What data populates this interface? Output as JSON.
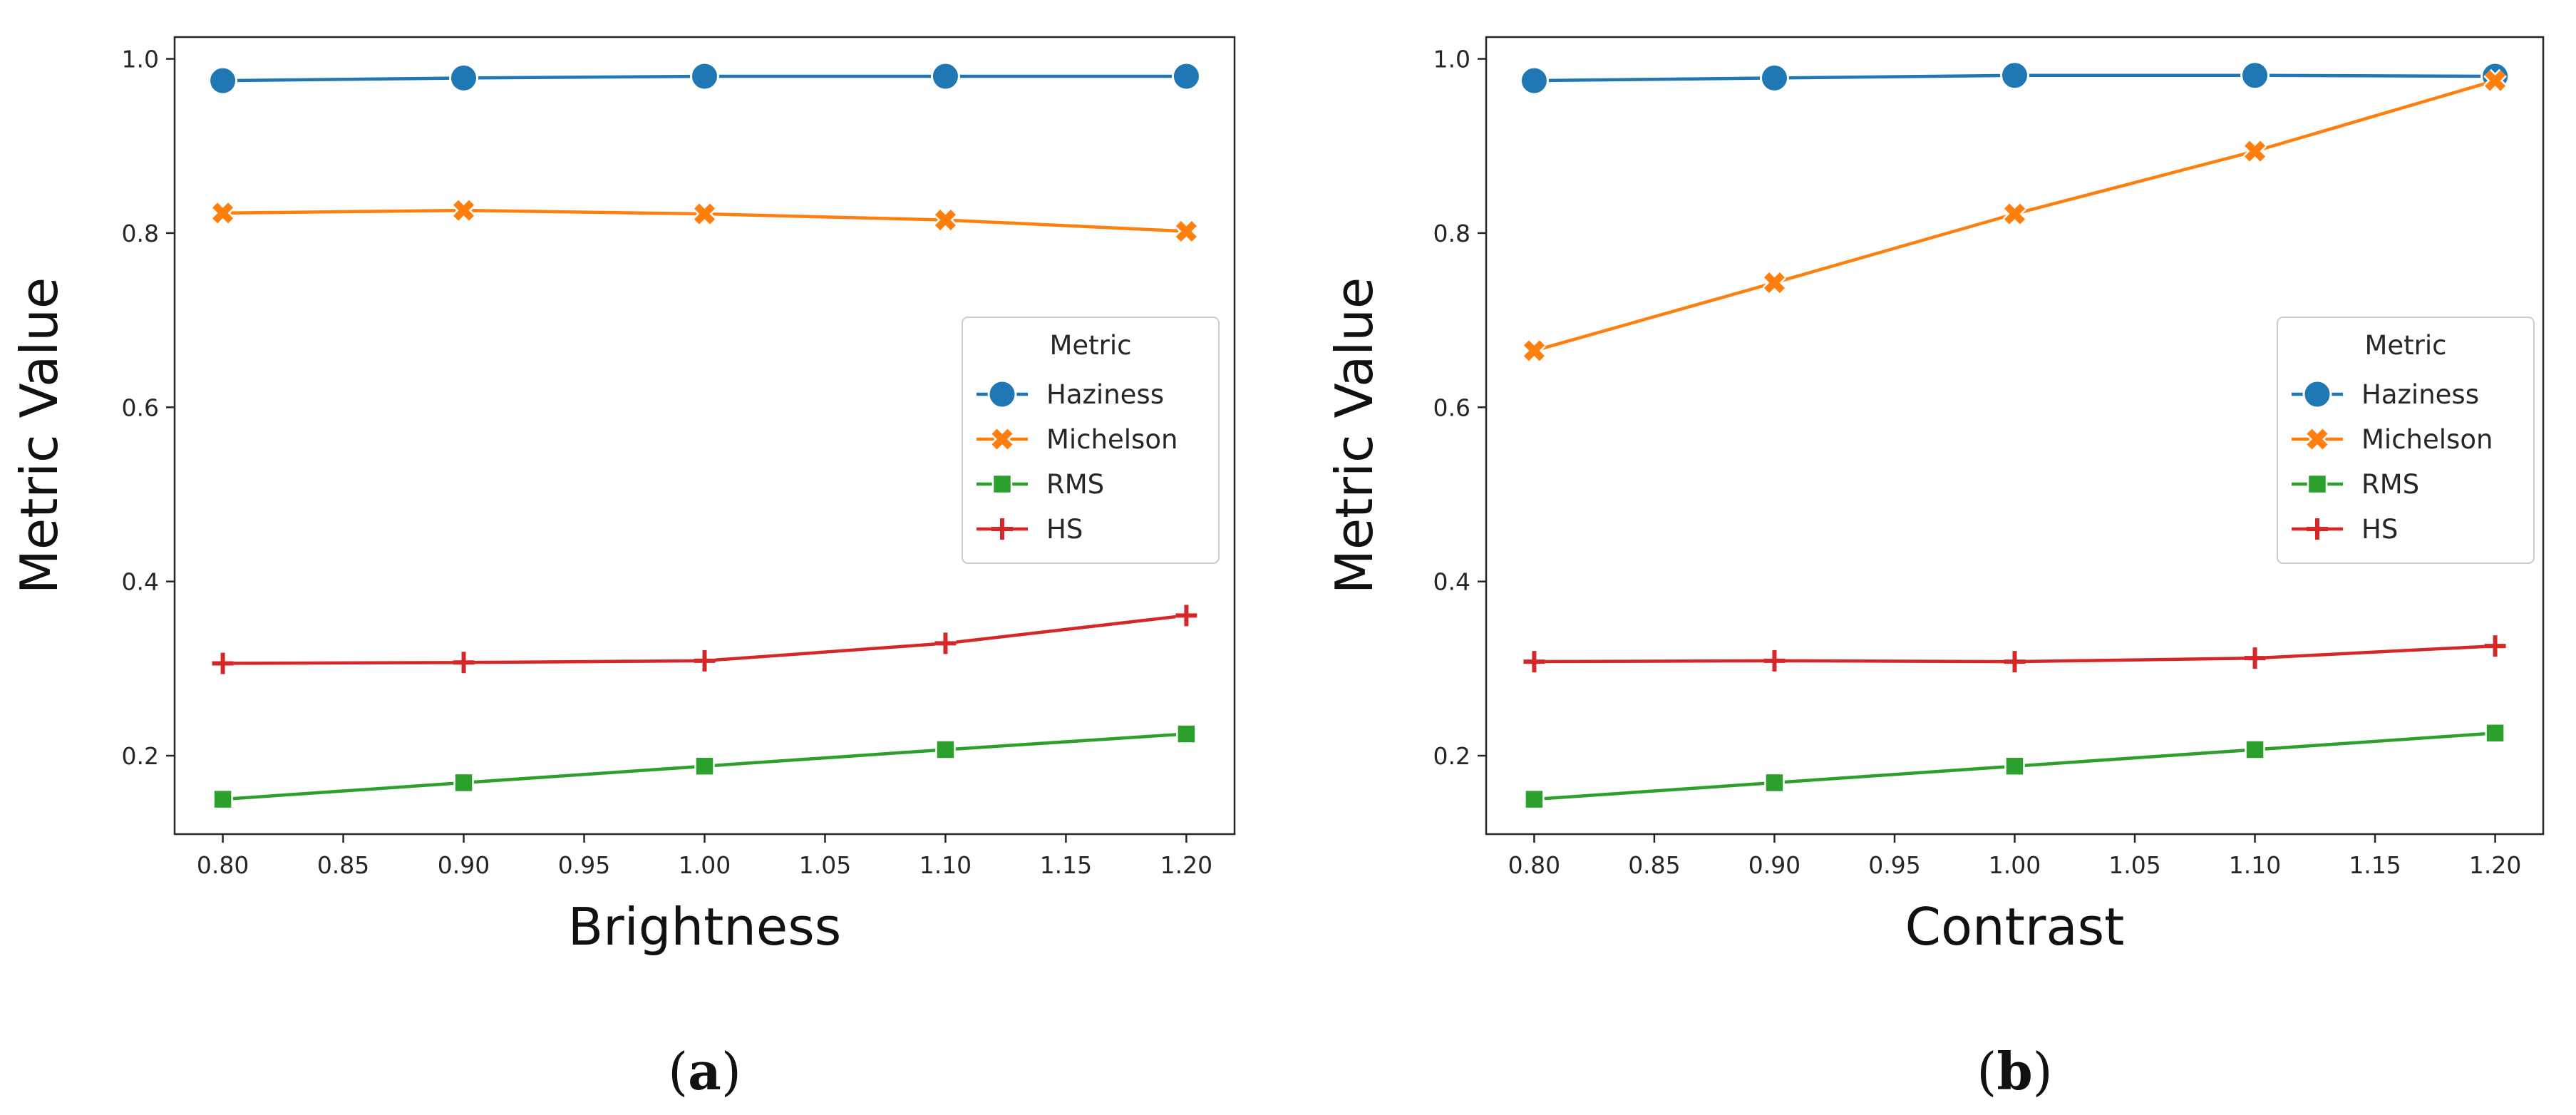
{
  "chart_data": [
    {
      "type": "line",
      "panel_label": "a",
      "xlabel": "Brightness",
      "ylabel": "Metric Value",
      "x": [
        0.8,
        0.9,
        1.0,
        1.1,
        1.2
      ],
      "xlim": [
        0.78,
        1.22
      ],
      "ylim": [
        0.11,
        1.025
      ],
      "xticks": [
        "0.80",
        "0.85",
        "0.90",
        "0.95",
        "1.00",
        "1.05",
        "1.10",
        "1.15",
        "1.20"
      ],
      "xtick_values": [
        0.8,
        0.85,
        0.9,
        0.95,
        1.0,
        1.05,
        1.1,
        1.15,
        1.2
      ],
      "yticks": [
        "0.2",
        "0.4",
        "0.6",
        "0.8",
        "1.0"
      ],
      "ytick_values": [
        0.2,
        0.4,
        0.6,
        0.8,
        1.0
      ],
      "grid": false,
      "legend": {
        "title": "Metric",
        "placement": "center-right"
      },
      "series": [
        {
          "name": "Haziness",
          "marker": "circle",
          "color": "#1f77b4",
          "values": [
            0.975,
            0.978,
            0.98,
            0.98,
            0.98
          ]
        },
        {
          "name": "Michelson",
          "marker": "x",
          "color": "#ff7f0e",
          "values": [
            0.823,
            0.826,
            0.822,
            0.815,
            0.802
          ]
        },
        {
          "name": "RMS",
          "marker": "square",
          "color": "#2ca02c",
          "values": [
            0.15,
            0.169,
            0.188,
            0.207,
            0.225
          ]
        },
        {
          "name": "HS",
          "marker": "plus",
          "color": "#d62728",
          "values": [
            0.306,
            0.307,
            0.309,
            0.329,
            0.361
          ]
        }
      ]
    },
    {
      "type": "line",
      "panel_label": "b",
      "xlabel": "Contrast",
      "ylabel": "Metric Value",
      "x": [
        0.8,
        0.9,
        1.0,
        1.1,
        1.2
      ],
      "xlim": [
        0.78,
        1.22
      ],
      "ylim": [
        0.11,
        1.025
      ],
      "xticks": [
        "0.80",
        "0.85",
        "0.90",
        "0.95",
        "1.00",
        "1.05",
        "1.10",
        "1.15",
        "1.20"
      ],
      "xtick_values": [
        0.8,
        0.85,
        0.9,
        0.95,
        1.0,
        1.05,
        1.1,
        1.15,
        1.2
      ],
      "yticks": [
        "0.2",
        "0.4",
        "0.6",
        "0.8",
        "1.0"
      ],
      "ytick_values": [
        0.2,
        0.4,
        0.6,
        0.8,
        1.0
      ],
      "grid": false,
      "legend": {
        "title": "Metric",
        "placement": "center-right"
      },
      "series": [
        {
          "name": "Haziness",
          "marker": "circle",
          "color": "#1f77b4",
          "values": [
            0.975,
            0.978,
            0.981,
            0.981,
            0.98
          ]
        },
        {
          "name": "Michelson",
          "marker": "x",
          "color": "#ff7f0e",
          "values": [
            0.665,
            0.743,
            0.822,
            0.894,
            0.975
          ]
        },
        {
          "name": "RMS",
          "marker": "square",
          "color": "#2ca02c",
          "values": [
            0.15,
            0.169,
            0.188,
            0.207,
            0.226
          ]
        },
        {
          "name": "HS",
          "marker": "plus",
          "color": "#d62728",
          "values": [
            0.308,
            0.309,
            0.308,
            0.312,
            0.326
          ]
        }
      ]
    }
  ]
}
